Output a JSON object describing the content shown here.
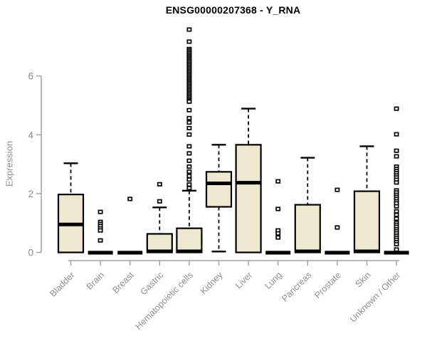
{
  "chart_data": {
    "type": "boxplot",
    "title": "ENSG00000207368 - Y_RNA",
    "ylabel": "Expression",
    "xlabel": "",
    "ylim": [
      0,
      7.7
    ],
    "yticks": [
      0,
      2,
      4,
      6
    ],
    "grid": false,
    "legend": "none",
    "categories": [
      "Bladder",
      "Brain",
      "Breast",
      "Gastric",
      "Hematopoietic cells",
      "Kidney",
      "Liver",
      "Lung",
      "Pancreas",
      "Prostate",
      "Skin",
      "Unknown / Other"
    ],
    "series": [
      {
        "category": "Bladder",
        "whisker_low": 0,
        "q1": 0,
        "median": 0.95,
        "q3": 1.97,
        "whisker_high": 3.03,
        "outliers": []
      },
      {
        "category": "Brain",
        "whisker_low": 0,
        "q1": 0,
        "median": 0,
        "q3": 0,
        "whisker_high": 0,
        "outliers": [
          1.38,
          1.04,
          0.97,
          0.9,
          0.82,
          0.75,
          0.41
        ]
      },
      {
        "category": "Breast",
        "whisker_low": 0,
        "q1": 0,
        "median": 0,
        "q3": 0,
        "whisker_high": 0,
        "outliers": [
          1.82
        ]
      },
      {
        "category": "Gastric",
        "whisker_low": 0,
        "q1": 0,
        "median": 0,
        "q3": 0.63,
        "whisker_high": 1.53,
        "outliers": [
          2.32,
          1.74
        ]
      },
      {
        "category": "Hematopoietic cells",
        "whisker_low": 0,
        "q1": 0,
        "median": 0,
        "q3": 0.82,
        "whisker_high": 2.1,
        "outliers": [
          7.58,
          7.17,
          6.92,
          6.87,
          6.82,
          6.77,
          6.72,
          6.67,
          6.62,
          6.57,
          6.52,
          6.47,
          6.42,
          6.37,
          6.32,
          6.27,
          6.22,
          6.17,
          6.12,
          6.07,
          6.02,
          5.97,
          5.92,
          5.87,
          5.82,
          5.77,
          5.72,
          5.67,
          5.62,
          5.57,
          5.52,
          5.47,
          5.42,
          5.37,
          5.32,
          5.27,
          5.22,
          5.17,
          5.13,
          4.84,
          4.57,
          4.42,
          4.23,
          4.01,
          3.61,
          3.37,
          3.12,
          2.92,
          2.75,
          2.6,
          2.48,
          2.31,
          2.19
        ]
      },
      {
        "category": "Kidney",
        "whisker_low": 0.03,
        "q1": 1.55,
        "median": 2.35,
        "q3": 2.74,
        "whisker_high": 3.66,
        "outliers": []
      },
      {
        "category": "Liver",
        "whisker_low": 0,
        "q1": 0,
        "median": 2.37,
        "q3": 3.66,
        "whisker_high": 4.89,
        "outliers": []
      },
      {
        "category": "Lung",
        "whisker_low": 0,
        "q1": 0,
        "median": 0,
        "q3": 0,
        "whisker_high": 0,
        "outliers": [
          2.42,
          1.48,
          0.75,
          0.65,
          0.51
        ]
      },
      {
        "category": "Pancreas",
        "whisker_low": 0,
        "q1": 0,
        "median": 0,
        "q3": 1.62,
        "whisker_high": 3.22,
        "outliers": []
      },
      {
        "category": "Prostate",
        "whisker_low": 0,
        "q1": 0,
        "median": 0,
        "q3": 0,
        "whisker_high": 0,
        "outliers": [
          2.13,
          0.85
        ]
      },
      {
        "category": "Skin",
        "whisker_low": 0,
        "q1": 0,
        "median": 0,
        "q3": 2.08,
        "whisker_high": 3.61,
        "outliers": []
      },
      {
        "category": "Unknown / Other",
        "whisker_low": 0,
        "q1": 0,
        "median": 0,
        "q3": 0,
        "whisker_high": 0,
        "outliers": [
          4.89,
          4.02,
          3.46,
          3.27,
          2.92,
          2.84,
          2.77,
          2.7,
          2.62,
          2.55,
          2.47,
          2.38,
          2.11,
          2.04,
          1.96,
          1.89,
          1.82,
          1.74,
          1.67,
          1.57,
          1.4,
          1.28,
          1.15,
          1.01,
          0.94,
          0.87,
          0.79,
          0.72,
          0.65,
          0.57,
          0.5,
          0.43,
          0.35,
          0.28,
          0.1
        ]
      }
    ],
    "colors": {
      "box_fill": "#ede8cf",
      "box_stroke": "#000000",
      "median": "#000000",
      "whisker": "#000000",
      "outlier_stroke": "#000000",
      "outlier_fill": "#ffffff",
      "axis_line": "#a3a3a3",
      "axis_text": "#8f8f8f",
      "title": "#000000",
      "background": "#ffffff"
    }
  }
}
